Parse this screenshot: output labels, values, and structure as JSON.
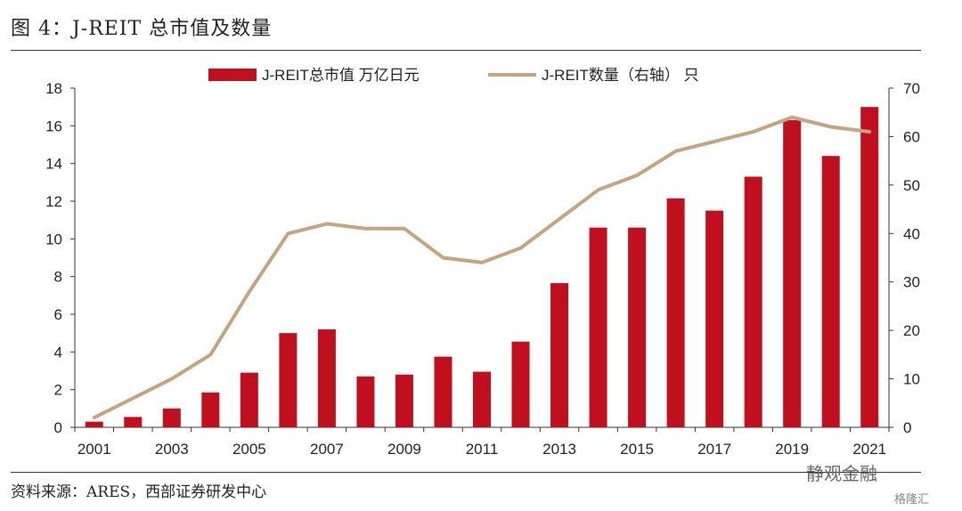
{
  "title": "图 4：J-REIT 总市值及数量",
  "source": "资料来源：ARES，西部证券研发中心",
  "watermark": {
    "name": "静观金融",
    "brand": "格隆汇"
  },
  "colors": {
    "bar": "#c00f1e",
    "line": "#c4a57e",
    "axis": "#333333"
  },
  "chart_data": {
    "type": "bar",
    "title": "",
    "categories": [
      "2001",
      "2002",
      "2003",
      "2004",
      "2005",
      "2006",
      "2007",
      "2008",
      "2009",
      "2010",
      "2011",
      "2012",
      "2013",
      "2014",
      "2015",
      "2016",
      "2017",
      "2018",
      "2019",
      "2020",
      "2021"
    ],
    "x_tick_labels": [
      "2001",
      "2003",
      "2005",
      "2007",
      "2009",
      "2011",
      "2013",
      "2015",
      "2017",
      "2019",
      "2021"
    ],
    "series": [
      {
        "name": "J-REIT总市值 万亿日元",
        "type": "bar",
        "axis": "left",
        "values": [
          0.3,
          0.55,
          1.0,
          1.85,
          2.9,
          5.0,
          5.2,
          2.7,
          2.8,
          3.75,
          2.95,
          4.55,
          7.65,
          10.6,
          10.6,
          12.15,
          11.5,
          13.3,
          16.3,
          14.4,
          17.0
        ]
      },
      {
        "name": "J-REIT数量（右轴） 只",
        "type": "line",
        "axis": "right",
        "values": [
          2,
          6,
          10,
          15,
          28,
          40,
          42,
          41,
          41,
          35,
          34,
          37,
          43,
          49,
          52,
          57,
          59,
          61,
          64,
          62,
          61
        ]
      }
    ],
    "y_left": {
      "lim": [
        0,
        18
      ],
      "ticks": [
        0,
        2,
        4,
        6,
        8,
        10,
        12,
        14,
        16,
        18
      ]
    },
    "y_right": {
      "lim": [
        0,
        70
      ],
      "ticks": [
        0,
        10,
        20,
        30,
        40,
        50,
        60,
        70
      ]
    },
    "legend": "top-center",
    "grid": false
  }
}
